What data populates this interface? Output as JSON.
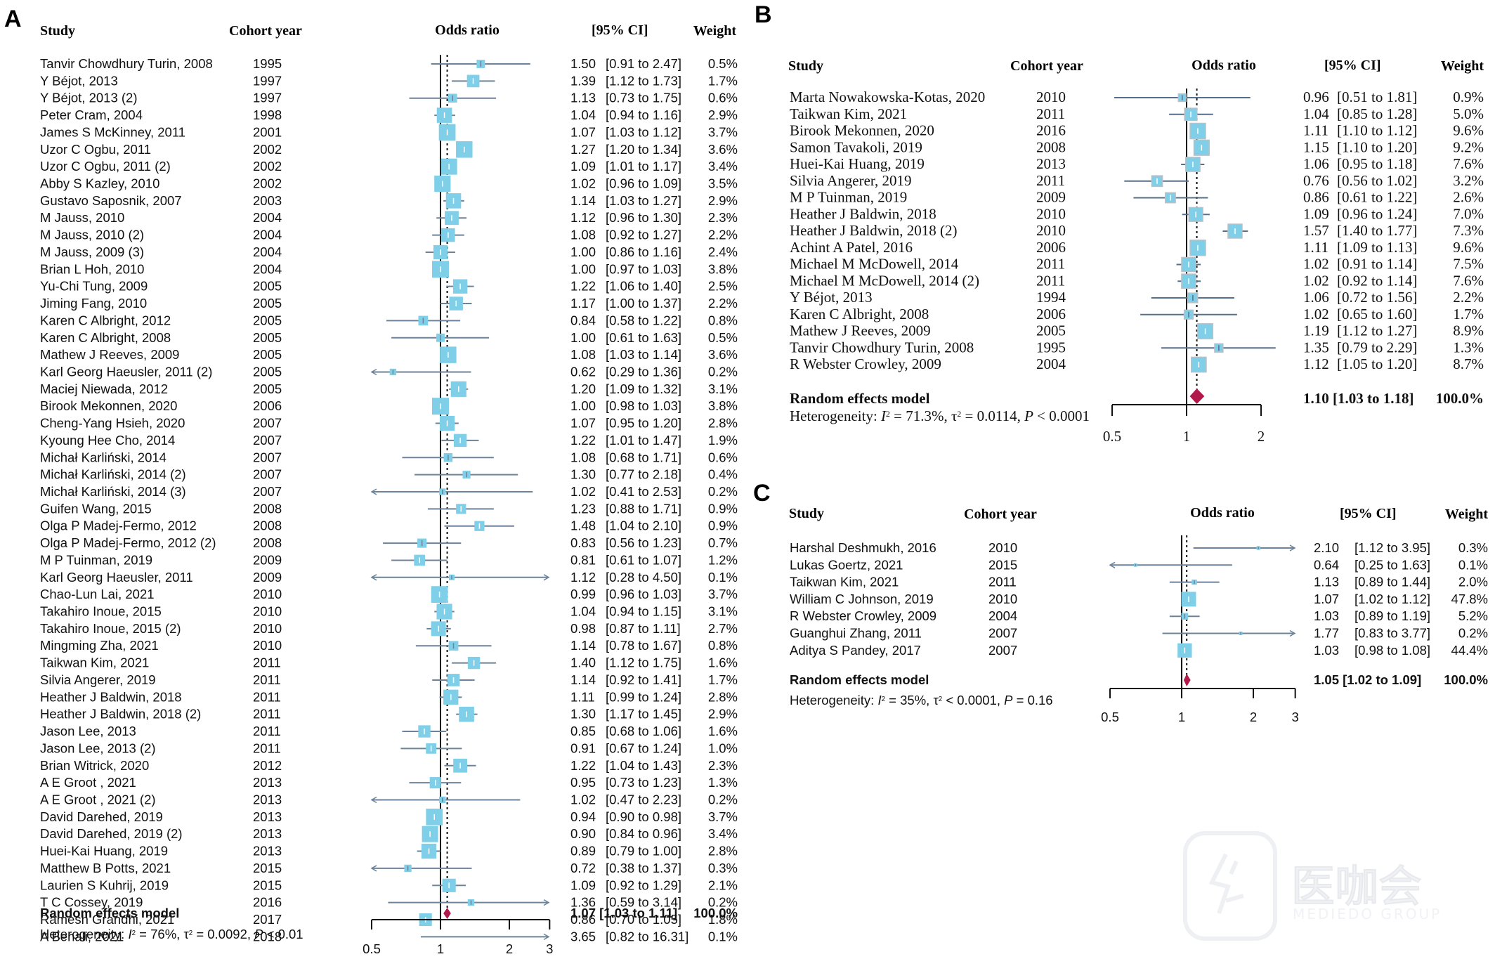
{
  "figure": {
    "watermark_text": "医咖会",
    "watermark_subtext": "MEDIEDO GROUP"
  },
  "chart_data": [
    {
      "type": "forest",
      "panel": "A",
      "headers": {
        "study": "Study",
        "cohort": "Cohort year",
        "or": "Odds ratio",
        "ci": "[95% CI]",
        "weight": "Weight"
      },
      "xscale": "log",
      "xticks": [
        0.5,
        1,
        2,
        3
      ],
      "xtick_labels": [
        "0.5",
        "1",
        "2",
        "3"
      ],
      "xlim": [
        0.5,
        3
      ],
      "reference_line": 1,
      "studies": [
        {
          "study": "Tanvir Chowdhury Turin, 2008",
          "cohort": "1995",
          "or": 1.5,
          "lo": 0.91,
          "hi": 2.47,
          "weight": "0.5%"
        },
        {
          "study": "Y Béjot, 2013",
          "cohort": "1997",
          "or": 1.39,
          "lo": 1.12,
          "hi": 1.73,
          "weight": "1.7%"
        },
        {
          "study": "Y Béjot, 2013 (2)",
          "cohort": "1997",
          "or": 1.13,
          "lo": 0.73,
          "hi": 1.75,
          "weight": "0.6%"
        },
        {
          "study": "Peter Cram, 2004",
          "cohort": "1998",
          "or": 1.04,
          "lo": 0.94,
          "hi": 1.16,
          "weight": "2.9%"
        },
        {
          "study": "James S McKinney, 2011",
          "cohort": "2001",
          "or": 1.07,
          "lo": 1.03,
          "hi": 1.12,
          "weight": "3.7%"
        },
        {
          "study": "Uzor C Ogbu, 2011",
          "cohort": "2002",
          "or": 1.27,
          "lo": 1.2,
          "hi": 1.34,
          "weight": "3.6%"
        },
        {
          "study": "Uzor C Ogbu, 2011 (2)",
          "cohort": "2002",
          "or": 1.09,
          "lo": 1.01,
          "hi": 1.17,
          "weight": "3.4%"
        },
        {
          "study": "Abby S Kazley, 2010",
          "cohort": "2002",
          "or": 1.02,
          "lo": 0.96,
          "hi": 1.09,
          "weight": "3.5%"
        },
        {
          "study": "Gustavo Saposnik, 2007",
          "cohort": "2003",
          "or": 1.14,
          "lo": 1.03,
          "hi": 1.27,
          "weight": "2.9%"
        },
        {
          "study": "M Jauss, 2010",
          "cohort": "2004",
          "or": 1.12,
          "lo": 0.96,
          "hi": 1.3,
          "weight": "2.3%"
        },
        {
          "study": "M Jauss, 2010 (2)",
          "cohort": "2004",
          "or": 1.08,
          "lo": 0.92,
          "hi": 1.27,
          "weight": "2.2%"
        },
        {
          "study": "M Jauss, 2009 (3)",
          "cohort": "2004",
          "or": 1.0,
          "lo": 0.86,
          "hi": 1.16,
          "weight": "2.4%"
        },
        {
          "study": "Brian L Hoh, 2010",
          "cohort": "2004",
          "or": 1.0,
          "lo": 0.97,
          "hi": 1.03,
          "weight": "3.8%"
        },
        {
          "study": "Yu-Chi Tung, 2009",
          "cohort": "2005",
          "or": 1.22,
          "lo": 1.06,
          "hi": 1.4,
          "weight": "2.5%"
        },
        {
          "study": "Jiming Fang, 2010",
          "cohort": "2005",
          "or": 1.17,
          "lo": 1.0,
          "hi": 1.37,
          "weight": "2.2%"
        },
        {
          "study": "Karen C Albright, 2012",
          "cohort": "2005",
          "or": 0.84,
          "lo": 0.58,
          "hi": 1.22,
          "weight": "0.8%"
        },
        {
          "study": "Karen C Albright, 2008",
          "cohort": "2005",
          "or": 1.0,
          "lo": 0.61,
          "hi": 1.63,
          "weight": "0.5%"
        },
        {
          "study": "Mathew J Reeves, 2009",
          "cohort": "2005",
          "or": 1.08,
          "lo": 1.03,
          "hi": 1.14,
          "weight": "3.6%"
        },
        {
          "study": "Karl Georg Haeusler, 2011 (2)",
          "cohort": "2005",
          "or": 0.62,
          "lo": 0.29,
          "hi": 1.36,
          "weight": "0.2%"
        },
        {
          "study": "Maciej Niewada, 2012",
          "cohort": "2005",
          "or": 1.2,
          "lo": 1.09,
          "hi": 1.32,
          "weight": "3.1%"
        },
        {
          "study": "Birook Mekonnen, 2020",
          "cohort": "2006",
          "or": 1.0,
          "lo": 0.98,
          "hi": 1.03,
          "weight": "3.8%"
        },
        {
          "study": "Cheng-Yang Hsieh, 2020",
          "cohort": "2007",
          "or": 1.07,
          "lo": 0.95,
          "hi": 1.2,
          "weight": "2.8%"
        },
        {
          "study": "Kyoung Hee Cho, 2014",
          "cohort": "2007",
          "or": 1.22,
          "lo": 1.01,
          "hi": 1.47,
          "weight": "1.9%"
        },
        {
          "study": "Michał Karliński, 2014",
          "cohort": "2007",
          "or": 1.08,
          "lo": 0.68,
          "hi": 1.71,
          "weight": "0.6%"
        },
        {
          "study": "Michał Karliński, 2014 (2)",
          "cohort": "2007",
          "or": 1.3,
          "lo": 0.77,
          "hi": 2.18,
          "weight": "0.4%"
        },
        {
          "study": "Michał Karliński, 2014 (3)",
          "cohort": "2007",
          "or": 1.02,
          "lo": 0.41,
          "hi": 2.53,
          "weight": "0.2%"
        },
        {
          "study": "Guifen Wang, 2015",
          "cohort": "2008",
          "or": 1.23,
          "lo": 0.88,
          "hi": 1.71,
          "weight": "0.9%"
        },
        {
          "study": "Olga P Madej-Fermo, 2012",
          "cohort": "2008",
          "or": 1.48,
          "lo": 1.04,
          "hi": 2.1,
          "weight": "0.9%"
        },
        {
          "study": "Olga P Madej-Fermo, 2012 (2)",
          "cohort": "2008",
          "or": 0.83,
          "lo": 0.56,
          "hi": 1.23,
          "weight": "0.7%"
        },
        {
          "study": "M P Tuinman, 2019",
          "cohort": "2009",
          "or": 0.81,
          "lo": 0.61,
          "hi": 1.07,
          "weight": "1.2%"
        },
        {
          "study": "Karl Georg Haeusler, 2011",
          "cohort": "2009",
          "or": 1.12,
          "lo": 0.28,
          "hi": 4.5,
          "weight": "0.1%"
        },
        {
          "study": "Chao-Lun Lai, 2021",
          "cohort": "2010",
          "or": 0.99,
          "lo": 0.96,
          "hi": 1.03,
          "weight": "3.7%"
        },
        {
          "study": "Takahiro Inoue, 2015",
          "cohort": "2010",
          "or": 1.04,
          "lo": 0.94,
          "hi": 1.15,
          "weight": "3.1%"
        },
        {
          "study": "Takahiro Inoue, 2015 (2)",
          "cohort": "2010",
          "or": 0.98,
          "lo": 0.87,
          "hi": 1.11,
          "weight": "2.7%"
        },
        {
          "study": "Mingming Zha, 2021",
          "cohort": "2010",
          "or": 1.14,
          "lo": 0.78,
          "hi": 1.67,
          "weight": "0.8%"
        },
        {
          "study": "Taikwan Kim, 2021",
          "cohort": "2011",
          "or": 1.4,
          "lo": 1.12,
          "hi": 1.75,
          "weight": "1.6%"
        },
        {
          "study": "Silvia Angerer, 2019",
          "cohort": "2011",
          "or": 1.14,
          "lo": 0.92,
          "hi": 1.41,
          "weight": "1.7%"
        },
        {
          "study": "Heather J Baldwin, 2018",
          "cohort": "2011",
          "or": 1.11,
          "lo": 0.99,
          "hi": 1.24,
          "weight": "2.8%"
        },
        {
          "study": "Heather J Baldwin, 2018 (2)",
          "cohort": "2011",
          "or": 1.3,
          "lo": 1.17,
          "hi": 1.45,
          "weight": "2.9%"
        },
        {
          "study": "Jason Lee, 2013",
          "cohort": "2011",
          "or": 0.85,
          "lo": 0.68,
          "hi": 1.06,
          "weight": "1.6%"
        },
        {
          "study": "Jason Lee, 2013 (2)",
          "cohort": "2011",
          "or": 0.91,
          "lo": 0.67,
          "hi": 1.24,
          "weight": "1.0%"
        },
        {
          "study": "Brian Witrick, 2020",
          "cohort": "2012",
          "or": 1.22,
          "lo": 1.04,
          "hi": 1.43,
          "weight": "2.3%"
        },
        {
          "study": "A E Groot , 2021",
          "cohort": "2013",
          "or": 0.95,
          "lo": 0.73,
          "hi": 1.23,
          "weight": "1.3%"
        },
        {
          "study": "A E Groot , 2021 (2)",
          "cohort": "2013",
          "or": 1.02,
          "lo": 0.47,
          "hi": 2.23,
          "weight": "0.2%"
        },
        {
          "study": "David Darehed, 2019",
          "cohort": "2013",
          "or": 0.94,
          "lo": 0.9,
          "hi": 0.98,
          "weight": "3.7%"
        },
        {
          "study": "David Darehed, 2019 (2)",
          "cohort": "2013",
          "or": 0.9,
          "lo": 0.84,
          "hi": 0.96,
          "weight": "3.4%"
        },
        {
          "study": "Huei-Kai Huang, 2019",
          "cohort": "2013",
          "or": 0.89,
          "lo": 0.79,
          "hi": 1.0,
          "weight": "2.8%"
        },
        {
          "study": "Matthew B Potts, 2021",
          "cohort": "2015",
          "or": 0.72,
          "lo": 0.38,
          "hi": 1.37,
          "weight": "0.3%"
        },
        {
          "study": "Laurien S Kuhrij, 2019",
          "cohort": "2015",
          "or": 1.09,
          "lo": 0.92,
          "hi": 1.29,
          "weight": "2.1%"
        },
        {
          "study": "T C Cossey, 2019",
          "cohort": "2016",
          "or": 1.36,
          "lo": 0.59,
          "hi": 3.14,
          "weight": "0.2%"
        },
        {
          "study": "Ramesh Grandhi, 2021",
          "cohort": "2017",
          "or": 0.86,
          "lo": 0.7,
          "hi": 1.05,
          "weight": "1.8%"
        },
        {
          "study": "A Benali, 2021",
          "cohort": "2018",
          "or": 3.65,
          "lo": 0.82,
          "hi": 16.31,
          "weight": "0.1%"
        }
      ],
      "pooled": {
        "label": "Random effects model",
        "or": 1.07,
        "lo": 1.03,
        "hi": 1.11,
        "weight": "100.0%"
      },
      "heterogeneity": {
        "prefix": "Heterogeneity: ",
        "i2": "76%",
        "tau2": "= 0.0092",
        "p": "< 0.01"
      }
    },
    {
      "type": "forest",
      "panel": "B",
      "headers": {
        "study": "Study",
        "cohort": "Cohort year",
        "or": "Odds ratio",
        "ci": "[95% CI]",
        "weight": "Weight"
      },
      "xscale": "log",
      "xticks": [
        0.5,
        1,
        2
      ],
      "xtick_labels": [
        "0.5",
        "1",
        "2"
      ],
      "xlim": [
        0.5,
        2
      ],
      "reference_line": 1,
      "studies": [
        {
          "study": "Marta Nowakowska-Kotas, 2020",
          "cohort": "2010",
          "or": 0.96,
          "lo": 0.51,
          "hi": 1.81,
          "weight": "0.9%"
        },
        {
          "study": "Taikwan Kim, 2021",
          "cohort": "2011",
          "or": 1.04,
          "lo": 0.85,
          "hi": 1.28,
          "weight": "5.0%"
        },
        {
          "study": "Birook Mekonnen, 2020",
          "cohort": "2016",
          "or": 1.11,
          "lo": 1.1,
          "hi": 1.12,
          "weight": "9.6%"
        },
        {
          "study": "Samon Tavakoli, 2019",
          "cohort": "2008",
          "or": 1.15,
          "lo": 1.1,
          "hi": 1.2,
          "weight": "9.2%"
        },
        {
          "study": "Huei-Kai Huang, 2019",
          "cohort": "2013",
          "or": 1.06,
          "lo": 0.95,
          "hi": 1.18,
          "weight": "7.6%"
        },
        {
          "study": "Silvia Angerer, 2019",
          "cohort": "2011",
          "or": 0.76,
          "lo": 0.56,
          "hi": 1.02,
          "weight": "3.2%"
        },
        {
          "study": "M P Tuinman, 2019",
          "cohort": "2009",
          "or": 0.86,
          "lo": 0.61,
          "hi": 1.22,
          "weight": "2.6%"
        },
        {
          "study": "Heather J Baldwin, 2018",
          "cohort": "2010",
          "or": 1.09,
          "lo": 0.96,
          "hi": 1.24,
          "weight": "7.0%"
        },
        {
          "study": "Heather J Baldwin, 2018 (2)",
          "cohort": "2010",
          "or": 1.57,
          "lo": 1.4,
          "hi": 1.77,
          "weight": "7.3%"
        },
        {
          "study": "Achint A Patel, 2016",
          "cohort": "2006",
          "or": 1.11,
          "lo": 1.09,
          "hi": 1.13,
          "weight": "9.6%"
        },
        {
          "study": "Michael M McDowell, 2014",
          "cohort": "2011",
          "or": 1.02,
          "lo": 0.91,
          "hi": 1.14,
          "weight": "7.5%"
        },
        {
          "study": "Michael M McDowell, 2014 (2)",
          "cohort": "2011",
          "or": 1.02,
          "lo": 0.92,
          "hi": 1.14,
          "weight": "7.6%"
        },
        {
          "study": "Y Béjot, 2013",
          "cohort": "1994",
          "or": 1.06,
          "lo": 0.72,
          "hi": 1.56,
          "weight": "2.2%"
        },
        {
          "study": "Karen C Albright, 2008",
          "cohort": "2006",
          "or": 1.02,
          "lo": 0.65,
          "hi": 1.6,
          "weight": "1.7%"
        },
        {
          "study": "Mathew J Reeves, 2009",
          "cohort": "2005",
          "or": 1.19,
          "lo": 1.12,
          "hi": 1.27,
          "weight": "8.9%"
        },
        {
          "study": "Tanvir Chowdhury Turin, 2008",
          "cohort": "1995",
          "or": 1.35,
          "lo": 0.79,
          "hi": 2.29,
          "weight": "1.3%"
        },
        {
          "study": "R Webster Crowley, 2009",
          "cohort": "2004",
          "or": 1.12,
          "lo": 1.05,
          "hi": 1.2,
          "weight": "8.7%"
        }
      ],
      "pooled": {
        "label": "Random effects model",
        "or": 1.1,
        "lo": 1.03,
        "hi": 1.18,
        "weight": "100.0%"
      },
      "heterogeneity": {
        "prefix": "Heterogeneity: ",
        "i2": "71.3%",
        "tau2": "= 0.0114",
        "p": "< 0.0001"
      }
    },
    {
      "type": "forest",
      "panel": "C",
      "headers": {
        "study": "Study",
        "cohort": "Cohort year",
        "or": "Odds ratio",
        "ci": "[95% CI]",
        "weight": "Weight"
      },
      "xscale": "log",
      "xticks": [
        0.5,
        1,
        2,
        3
      ],
      "xtick_labels": [
        "0.5",
        "1",
        "2",
        "3"
      ],
      "xlim": [
        0.5,
        3
      ],
      "reference_line": 1,
      "studies": [
        {
          "study": "Harshal Deshmukh, 2016",
          "cohort": "2010",
          "or": 2.1,
          "lo": 1.12,
          "hi": 3.95,
          "weight": "0.3%"
        },
        {
          "study": "Lukas Goertz, 2021",
          "cohort": "2015",
          "or": 0.64,
          "lo": 0.25,
          "hi": 1.63,
          "weight": "0.1%"
        },
        {
          "study": "Taikwan Kim, 2021",
          "cohort": "2011",
          "or": 1.13,
          "lo": 0.89,
          "hi": 1.44,
          "weight": "2.0%"
        },
        {
          "study": "William C Johnson, 2019",
          "cohort": "2010",
          "or": 1.07,
          "lo": 1.02,
          "hi": 1.12,
          "weight": "47.8%"
        },
        {
          "study": "R Webster Crowley, 2009",
          "cohort": "2004",
          "or": 1.03,
          "lo": 0.89,
          "hi": 1.19,
          "weight": "5.2%"
        },
        {
          "study": "Guanghui Zhang, 2011",
          "cohort": "2007",
          "or": 1.77,
          "lo": 0.83,
          "hi": 3.77,
          "weight": "0.2%"
        },
        {
          "study": "Aditya S Pandey, 2017",
          "cohort": "2007",
          "or": 1.03,
          "lo": 0.98,
          "hi": 1.08,
          "weight": "44.4%"
        }
      ],
      "pooled": {
        "label": "Random effects model",
        "or": 1.05,
        "lo": 1.02,
        "hi": 1.09,
        "weight": "100.0%"
      },
      "heterogeneity": {
        "prefix": "Heterogeneity: ",
        "i2": "35%",
        "tau2": "< 0.0001",
        "p": "= 0.16"
      }
    }
  ],
  "colors": {
    "square": "#7fcfe8",
    "square_border_B": "#b8c0c8",
    "ci_line": "#6c8399",
    "ci_line_B": "#566f8a",
    "diamond": "#b0194a",
    "axis": "#111111"
  }
}
